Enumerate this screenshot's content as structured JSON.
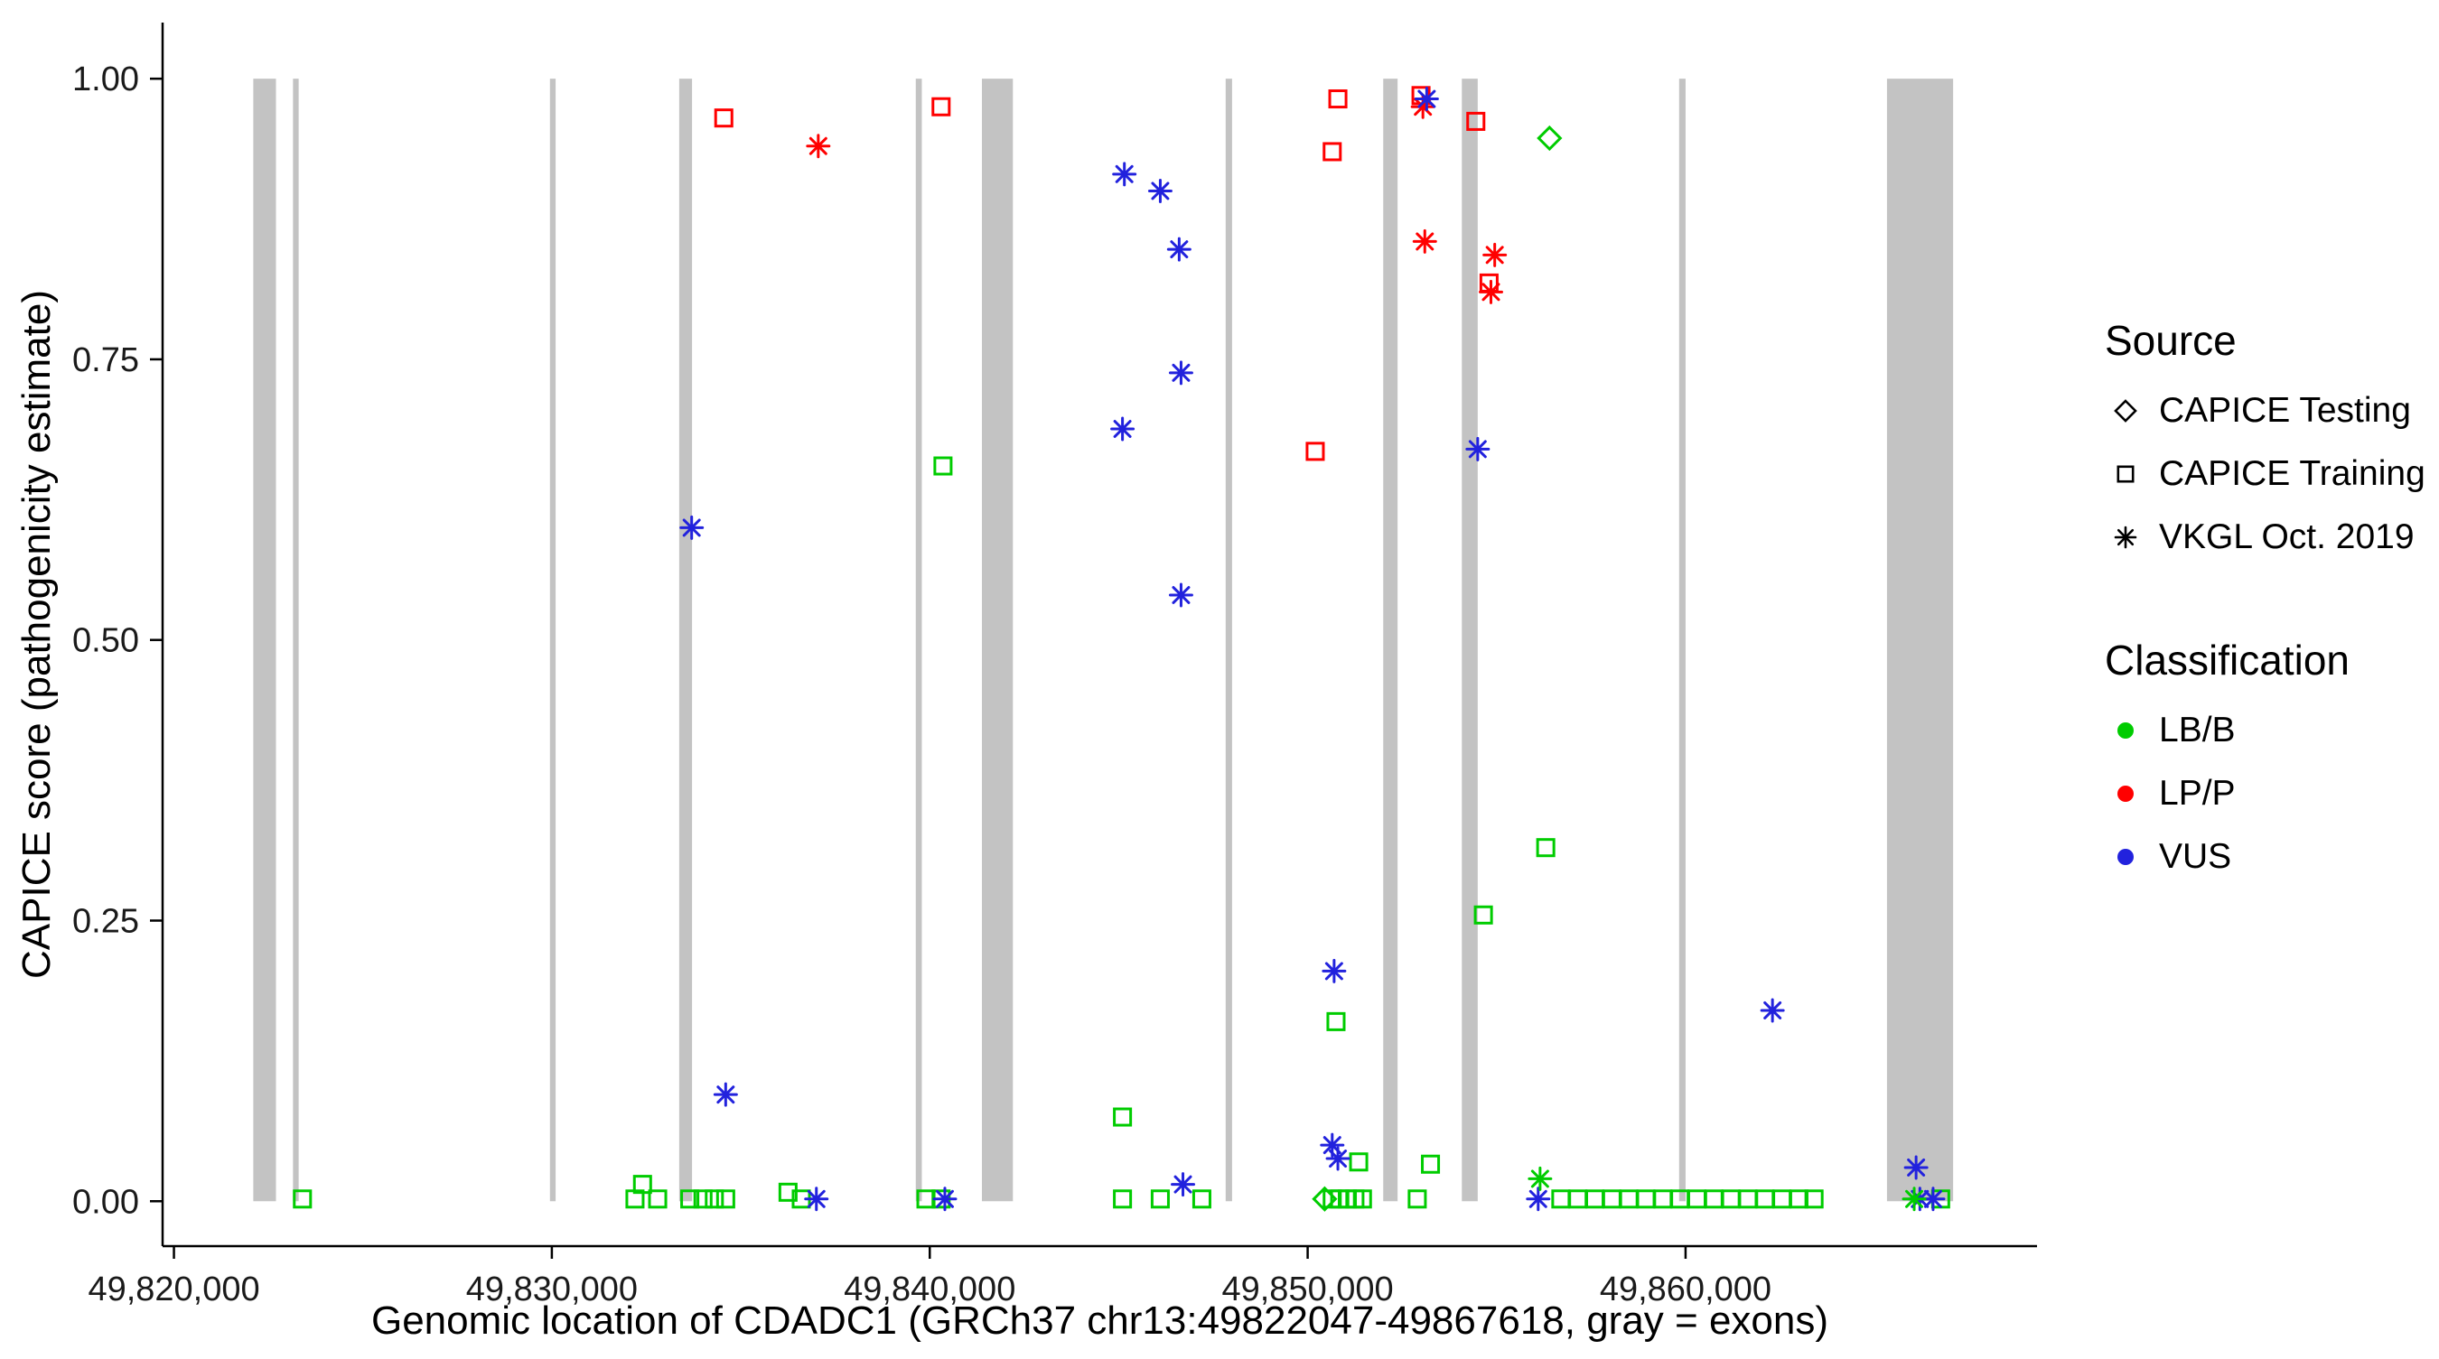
{
  "legend": {
    "source": {
      "title": "Source",
      "items": [
        {
          "label": "CAPICE Testing",
          "shape": "diamond"
        },
        {
          "label": "CAPICE Training",
          "shape": "square"
        },
        {
          "label": "VKGL Oct. 2019",
          "shape": "asterisk"
        }
      ]
    },
    "classification": {
      "title": "Classification",
      "items": [
        {
          "label": "LB/B",
          "color": "#00CC00"
        },
        {
          "label": "LP/P",
          "color": "#FF0000"
        },
        {
          "label": "VUS",
          "color": "#2222DD"
        }
      ]
    }
  },
  "chart_data": {
    "type": "scatter",
    "title": "",
    "xlabel": "Genomic location of CDADC1 (GRCh37 chr13:49822047-49867618, gray = exons)",
    "ylabel": "CAPICE score (pathogenicity estimate)",
    "xlim": [
      49819700,
      49869300
    ],
    "ylim": [
      -0.04,
      1.05
    ],
    "x_ticks": [
      {
        "value": 49820000,
        "label": "49,820,000"
      },
      {
        "value": 49830000,
        "label": "49,830,000"
      },
      {
        "value": 49840000,
        "label": "49,840,000"
      },
      {
        "value": 49850000,
        "label": "49,850,000"
      },
      {
        "value": 49860000,
        "label": "49,860,000"
      }
    ],
    "y_ticks": [
      {
        "value": 0.0,
        "label": "0.00"
      },
      {
        "value": 0.25,
        "label": "0.25"
      },
      {
        "value": 0.5,
        "label": "0.50"
      },
      {
        "value": 0.75,
        "label": "0.75"
      },
      {
        "value": 1.0,
        "label": "1.00"
      }
    ],
    "exon_color": "#C3C3C3",
    "exons": [
      [
        49822100,
        49822700
      ],
      [
        49823150,
        49823300
      ],
      [
        49829950,
        49830100
      ],
      [
        49833370,
        49833710
      ],
      [
        49839630,
        49839790
      ],
      [
        49841380,
        49842200
      ],
      [
        49847830,
        49848000
      ],
      [
        49852000,
        49852380
      ],
      [
        49854080,
        49854500
      ],
      [
        49859830,
        49860000
      ],
      [
        49865330,
        49867080
      ]
    ],
    "series": [
      {
        "source": "CAPICE Testing",
        "classification": "LB/B",
        "shape": "diamond",
        "color": "#00CC00",
        "points": [
          [
            49856400,
            0.947
          ],
          [
            49850450,
            0.002
          ]
        ]
      },
      {
        "source": "CAPICE Training",
        "classification": "LP/P",
        "shape": "square",
        "color": "#FF0000",
        "points": [
          [
            49834550,
            0.965
          ],
          [
            49840300,
            0.975
          ],
          [
            49850800,
            0.982
          ],
          [
            49850650,
            0.935
          ],
          [
            49850200,
            0.668
          ],
          [
            49853000,
            0.985
          ],
          [
            49854450,
            0.962
          ],
          [
            49854800,
            0.818
          ]
        ]
      },
      {
        "source": "CAPICE Training",
        "classification": "LB/B",
        "shape": "square",
        "color": "#00CC00",
        "points": [
          [
            49840350,
            0.655
          ],
          [
            49856300,
            0.315
          ],
          [
            49854650,
            0.255
          ],
          [
            49850750,
            0.16
          ],
          [
            49845100,
            0.075
          ],
          [
            49851350,
            0.035
          ],
          [
            49853250,
            0.033
          ],
          [
            49823400,
            0.002
          ],
          [
            49832200,
            0.002
          ],
          [
            49832400,
            0.015
          ],
          [
            49832800,
            0.002
          ],
          [
            49833650,
            0.002
          ],
          [
            49834000,
            0.002
          ],
          [
            49834300,
            0.002
          ],
          [
            49834600,
            0.002
          ],
          [
            49836250,
            0.008
          ],
          [
            49836600,
            0.002
          ],
          [
            49839900,
            0.002
          ],
          [
            49840300,
            0.002
          ],
          [
            49845100,
            0.002
          ],
          [
            49846100,
            0.002
          ],
          [
            49847200,
            0.002
          ],
          [
            49850650,
            0.002
          ],
          [
            49850850,
            0.002
          ],
          [
            49851050,
            0.002
          ],
          [
            49851250,
            0.002
          ],
          [
            49851450,
            0.002
          ],
          [
            49852900,
            0.002
          ],
          [
            49856700,
            0.002
          ],
          [
            49857150,
            0.002
          ],
          [
            49857600,
            0.002
          ],
          [
            49858050,
            0.002
          ],
          [
            49858500,
            0.002
          ],
          [
            49858950,
            0.002
          ],
          [
            49859400,
            0.002
          ],
          [
            49859850,
            0.002
          ],
          [
            49860300,
            0.002
          ],
          [
            49860750,
            0.002
          ],
          [
            49861200,
            0.002
          ],
          [
            49861650,
            0.002
          ],
          [
            49862100,
            0.002
          ],
          [
            49862550,
            0.002
          ],
          [
            49863000,
            0.002
          ],
          [
            49863400,
            0.002
          ],
          [
            49866750,
            0.002
          ]
        ]
      },
      {
        "source": "VKGL Oct. 2019",
        "classification": "LP/P",
        "shape": "asterisk",
        "color": "#FF0000",
        "points": [
          [
            49837050,
            0.94
          ],
          [
            49853050,
            0.975
          ],
          [
            49853100,
            0.855
          ],
          [
            49854950,
            0.843
          ],
          [
            49854850,
            0.81
          ]
        ]
      },
      {
        "source": "VKGL Oct. 2019",
        "classification": "VUS",
        "shape": "asterisk",
        "color": "#2222DD",
        "points": [
          [
            49833700,
            0.6
          ],
          [
            49834600,
            0.095
          ],
          [
            49837000,
            0.002
          ],
          [
            49840400,
            0.002
          ],
          [
            49845150,
            0.915
          ],
          [
            49846100,
            0.9
          ],
          [
            49846600,
            0.848
          ],
          [
            49846650,
            0.738
          ],
          [
            49845100,
            0.688
          ],
          [
            49846650,
            0.54
          ],
          [
            49846700,
            0.015
          ],
          [
            49850700,
            0.205
          ],
          [
            49850650,
            0.05
          ],
          [
            49850800,
            0.038
          ],
          [
            49853150,
            0.982
          ],
          [
            49854500,
            0.67
          ],
          [
            49856100,
            0.002
          ],
          [
            49862300,
            0.17
          ],
          [
            49866100,
            0.03
          ],
          [
            49866200,
            0.002
          ],
          [
            49866550,
            0.002
          ]
        ]
      },
      {
        "source": "VKGL Oct. 2019",
        "classification": "LB/B",
        "shape": "asterisk",
        "color": "#00CC00",
        "points": [
          [
            49856150,
            0.02
          ],
          [
            49866050,
            0.002
          ]
        ]
      }
    ]
  }
}
